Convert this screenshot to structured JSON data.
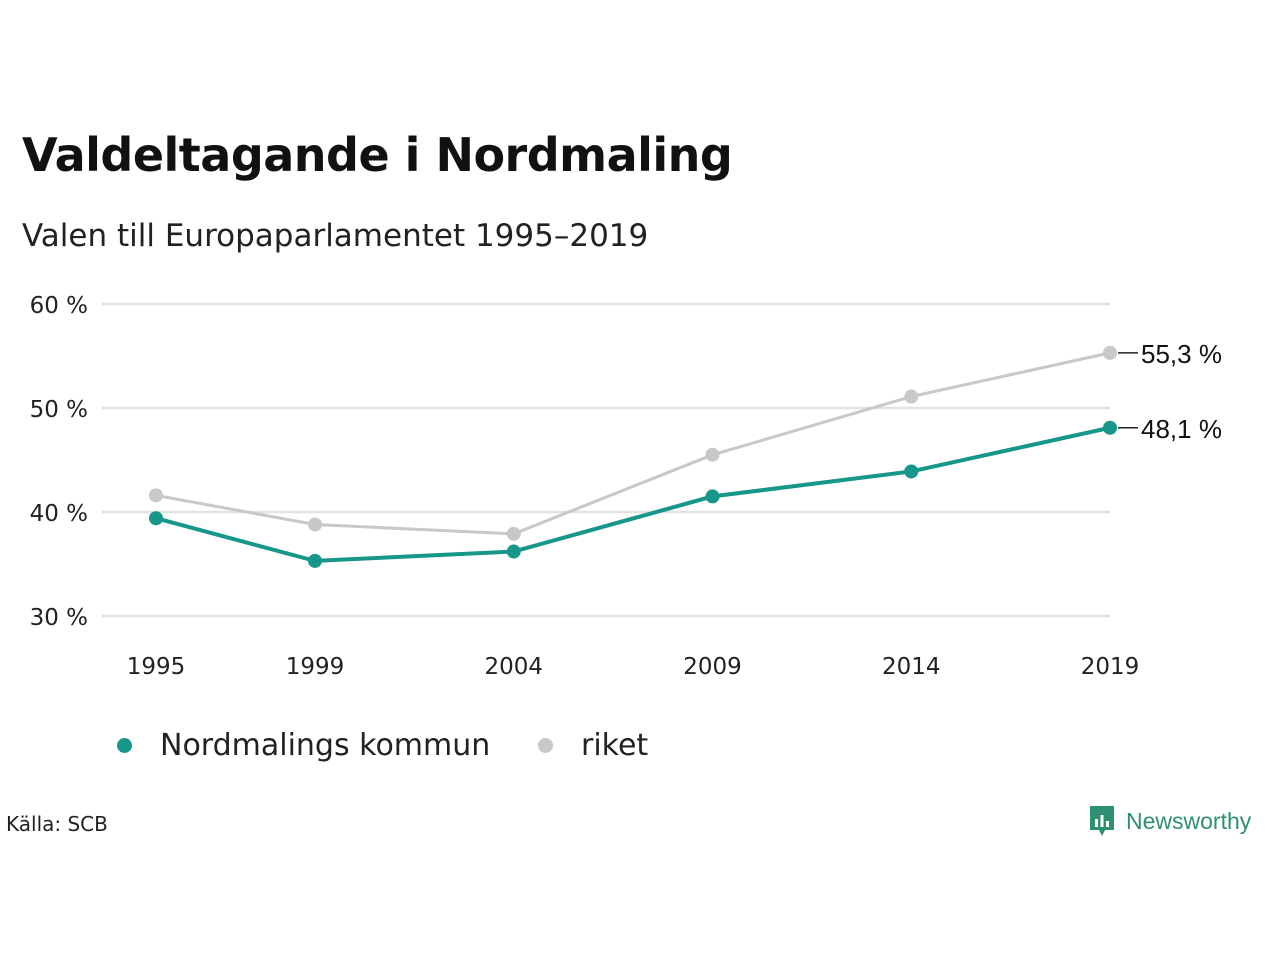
{
  "title": "Valdeltagande i Nordmaling",
  "subtitle": "Valen till Europaparlamentet 1995–2019",
  "source": "Källa: SCB",
  "brand": "Newsworthy",
  "colors": {
    "kommun": "#17968a",
    "riket": "#c8c8c8",
    "grid": "#e2e2e2",
    "brand": "#2f8f73"
  },
  "chart_data": {
    "type": "line",
    "categories": [
      "1995",
      "1999",
      "2004",
      "2009",
      "2014",
      "2019"
    ],
    "series": [
      {
        "name": "Nordmalings kommun",
        "values": [
          39.4,
          35.3,
          36.2,
          41.5,
          43.9,
          48.1
        ],
        "end_label": "48,1 %"
      },
      {
        "name": "riket",
        "values": [
          41.6,
          38.8,
          37.9,
          45.5,
          51.1,
          55.3
        ],
        "end_label": "55,3 %"
      }
    ],
    "ylim": [
      30,
      60
    ],
    "yticks": [
      30,
      40,
      50,
      60
    ],
    "ytick_labels": [
      "30 %",
      "40 %",
      "50 %",
      "60 %"
    ],
    "grid": true,
    "legend": "bottom-left"
  }
}
